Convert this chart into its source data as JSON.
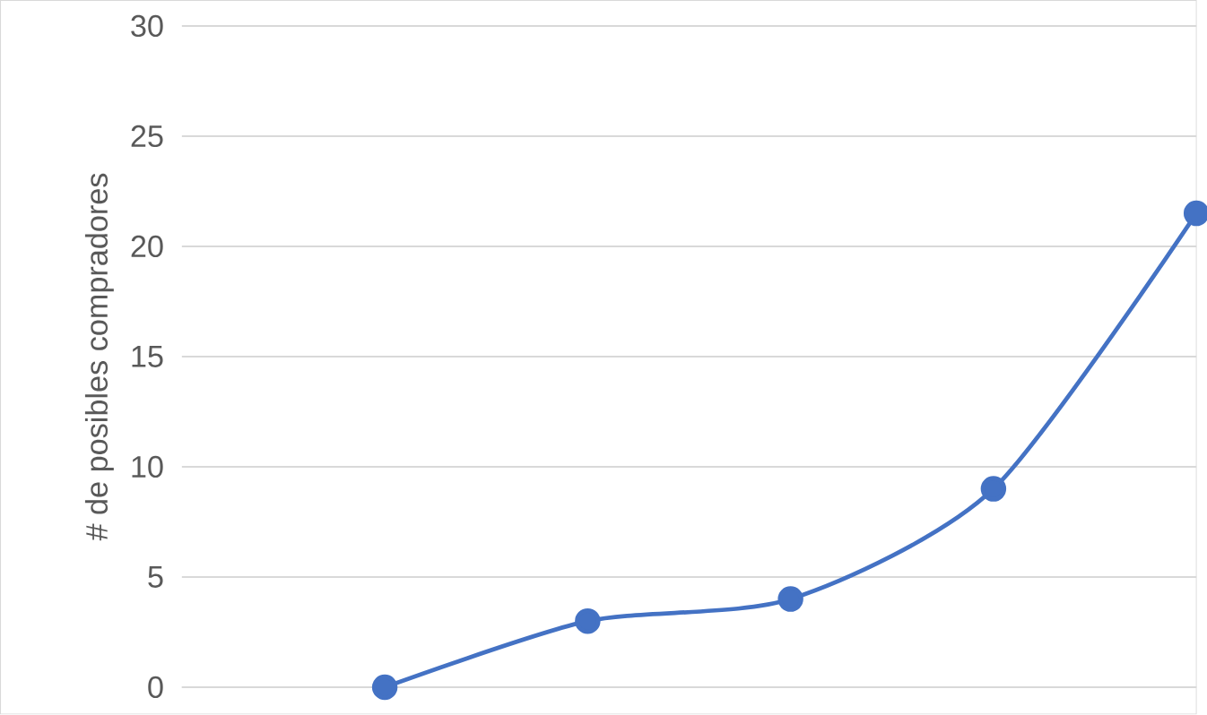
{
  "chart_data": {
    "type": "line",
    "ylabel": "# de posibles compradores",
    "categories": [
      null,
      null,
      null,
      null,
      null
    ],
    "series": [
      {
        "color": "#4472c4",
        "values": [
          0,
          3,
          4,
          9,
          21.5
        ]
      }
    ],
    "ylim": [
      0,
      30
    ],
    "yticks": [
      0,
      5,
      10,
      15,
      20,
      25,
      30
    ],
    "grid": "y",
    "marker": "circle",
    "tick_labels": "y"
  }
}
